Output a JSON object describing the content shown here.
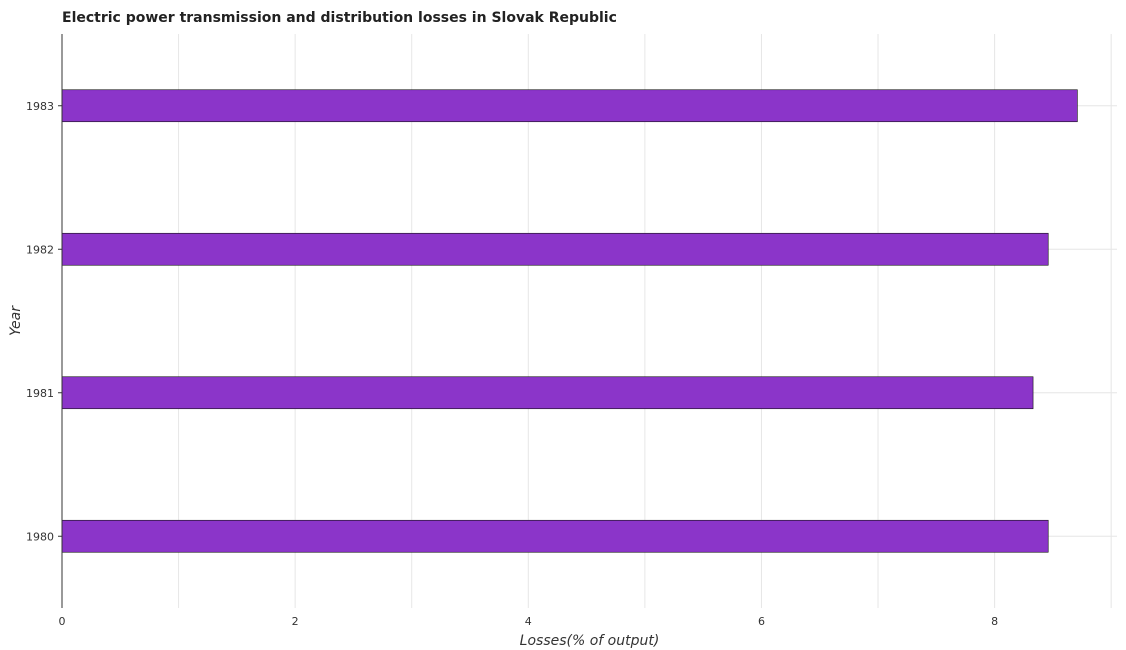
{
  "chart_data": {
    "type": "bar",
    "orientation": "horizontal",
    "title": "Electric power transmission and distribution losses in Slovak Republic",
    "xlabel": "Losses(% of output)",
    "ylabel": "Year",
    "categories": [
      "1980",
      "1981",
      "1982",
      "1983"
    ],
    "series": [
      {
        "values": [
          8.46,
          8.33,
          8.46,
          8.71
        ],
        "color": "#8b35c9"
      }
    ],
    "xlim": [
      0,
      9.05
    ],
    "xticks": [
      0,
      2,
      4,
      6,
      8
    ],
    "xtick_labels": [
      "0",
      "2",
      "4",
      "6",
      "8"
    ],
    "grid": true,
    "legend": "none"
  }
}
